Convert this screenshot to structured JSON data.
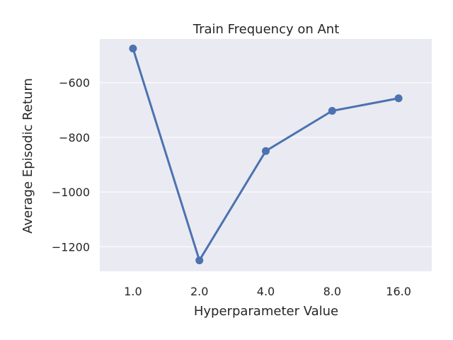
{
  "chart_data": {
    "type": "line",
    "title": "Train Frequency on Ant",
    "xlabel": "Hyperparameter Value",
    "ylabel": "Average Episodic Return",
    "categories": [
      "1.0",
      "2.0",
      "4.0",
      "8.0",
      "16.0"
    ],
    "series": [
      {
        "values": [
          -475,
          -1250,
          -850,
          -703,
          -657
        ]
      }
    ],
    "yticks": [
      -600,
      -800,
      -1000,
      -1200
    ],
    "ytick_labels": [
      "−600",
      "−800",
      "−1000",
      "−1200"
    ],
    "ylim": [
      -1290,
      -440
    ],
    "grid": true,
    "legend": "none",
    "colors": {
      "plot_background": "#eaeaf2",
      "grid": "#ffffff",
      "line": "#4c72b0"
    }
  }
}
